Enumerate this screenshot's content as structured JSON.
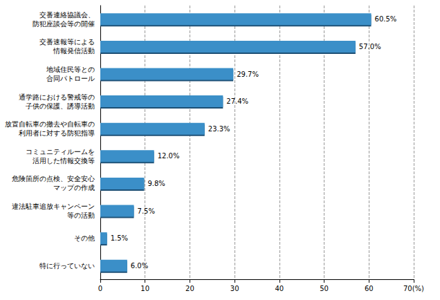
{
  "chart_data": {
    "type": "bar",
    "orientation": "horizontal",
    "categories": [
      "交番連絡協議会、\n防犯座談会等の開催",
      "交番速報等による\n情報発信活動",
      "地域住民等との\n合同パトロール",
      "通学路における警戒等の\n子供の保護、誘導活動",
      "放置自転車の撤去や自転車の\n利用者に対する防犯指導",
      "コミュニティルームを\n活用した情報交換等",
      "危険箇所の点検、安全安心\nマップの作成",
      "違法駐車追放キャンペーン\n等の活動",
      "その他",
      "特に行っていない"
    ],
    "values": [
      60.5,
      57.0,
      29.7,
      27.4,
      23.3,
      12.0,
      9.8,
      7.5,
      1.5,
      6.0
    ],
    "value_labels": [
      "60.5%",
      "57.0%",
      "29.7%",
      "27.4%",
      "23.3%",
      "12.0%",
      "9.8%",
      "7.5%",
      "1.5%",
      "6.0%"
    ],
    "data_labels": true,
    "color": "#3a8fc8",
    "xlim": [
      0,
      70
    ],
    "xticks": [
      0,
      10,
      20,
      30,
      40,
      50,
      60,
      {
        "value": 70,
        "label": "70(%)"
      }
    ],
    "grid": true
  }
}
